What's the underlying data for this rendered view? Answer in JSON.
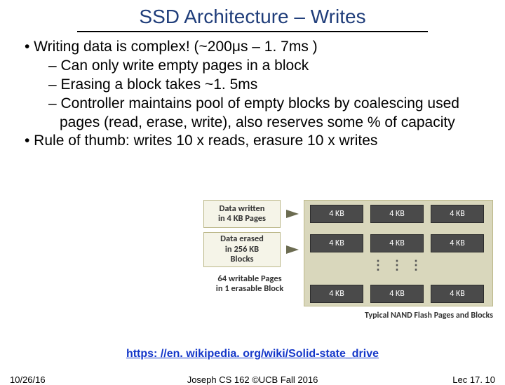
{
  "title": "SSD Architecture – Writes",
  "bullets": {
    "b1": "•  Writing data is complex! (~200μs – 1. 7ms )",
    "b1a": "– Can only write empty pages in a block",
    "b1b": "– Erasing a block takes ~1. 5ms",
    "b1c": "– Controller maintains pool of empty blocks by coalescing used pages (read, erase, write), also reserves some % of capacity",
    "b2": "•  Rule of thumb: writes 10 x reads, erasure 10 x writes"
  },
  "diagram": {
    "label_top_l1": "Data written",
    "label_top_l2": "in 4 KB Pages",
    "label_mid_l1": "Data erased",
    "label_mid_l2": "in 256 KB",
    "label_mid_l3": "Blocks",
    "label_bot_l1": "64 writable Pages",
    "label_bot_l2": "in 1 erasable Block",
    "cell": "4 KB",
    "dots": "⋮    ⋮    ⋮",
    "caption": "Typical NAND Flash Pages and Blocks"
  },
  "link": "https: //en. wikipedia. org/wiki/Solid-state_drive",
  "footer": {
    "date": "10/26/16",
    "mid": "Joseph CS 162 ©UCB Fall 2016",
    "lec": "Lec 17. 10"
  }
}
